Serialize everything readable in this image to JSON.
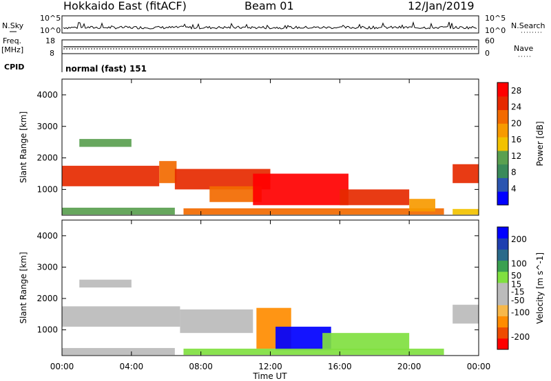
{
  "header": {
    "station": "Hokkaido East (fitACF)",
    "beam": "Beam 01",
    "date": "12/Jan/2019"
  },
  "sidepanel": {
    "nsky_label": "N.Sky",
    "nsky_ticks": [
      "10^5",
      "10^0"
    ],
    "nsearch_label": "N.Search",
    "nsearch_ticks": [
      "10^5",
      "10^0"
    ],
    "freq_label": "Freq.",
    "freq_unit": "[MHz]",
    "freq_ticks": [
      "18",
      "8"
    ],
    "nave_label": "Nave",
    "nave_ticks": [
      "60",
      "0"
    ],
    "cpid_label": "CPID",
    "cpid_value": "normal (fast) 151"
  },
  "colors": {
    "power_scale": [
      "#0000ff",
      "#2b55b0",
      "#3a8a5a",
      "#5aa050",
      "#f2c200",
      "#f79a00",
      "#f26a00",
      "#e62a00",
      "#ff0000"
    ],
    "velocity_scale": [
      "#ff0000",
      "#ee4b00",
      "#ff8c00",
      "#f7b84a",
      "#bbbbbb",
      "#bbbbbb",
      "#80e040",
      "#3aa050",
      "#2a6a8a",
      "#1f3fb0",
      "#0000ff"
    ]
  },
  "chart_data": [
    {
      "type": "heatmap",
      "name": "power",
      "ylabel": "Slant Range [km]",
      "xlabel": "",
      "x_ticks": [
        "00:00",
        "04:00",
        "08:00",
        "12:00",
        "16:00",
        "20:00",
        "00:00"
      ],
      "y_ticks": [
        1000,
        2000,
        3000,
        4000
      ],
      "ylim": [
        180,
        4500
      ],
      "xlim_hours": [
        0,
        24
      ],
      "colorbar": {
        "label": "Power [dB]",
        "ticks": [
          4,
          8,
          12,
          16,
          20,
          24,
          28
        ],
        "range": [
          0,
          30
        ]
      },
      "regions": [
        {
          "t0": 0.0,
          "t1": 5.6,
          "r0": 1100,
          "r1": 1750,
          "level": 26
        },
        {
          "t0": 5.6,
          "t1": 6.6,
          "r0": 1200,
          "r1": 1900,
          "level": 22
        },
        {
          "t0": 0.0,
          "t1": 6.5,
          "r0": 200,
          "r1": 420,
          "level": 10
        },
        {
          "t0": 6.5,
          "t1": 12.0,
          "r0": 1000,
          "r1": 1650,
          "level": 24
        },
        {
          "t0": 8.5,
          "t1": 11.5,
          "r0": 600,
          "r1": 1100,
          "level": 22
        },
        {
          "t0": 11.0,
          "t1": 16.5,
          "r0": 500,
          "r1": 1500,
          "level": 27
        },
        {
          "t0": 16.0,
          "t1": 20.0,
          "r0": 500,
          "r1": 1000,
          "level": 24
        },
        {
          "t0": 7.0,
          "t1": 22.0,
          "r0": 200,
          "r1": 400,
          "level": 22
        },
        {
          "t0": 20.0,
          "t1": 21.5,
          "r0": 300,
          "r1": 700,
          "level": 18
        },
        {
          "t0": 22.5,
          "t1": 24.0,
          "r0": 1200,
          "r1": 1800,
          "level": 25
        },
        {
          "t0": 22.5,
          "t1": 24.0,
          "r0": 200,
          "r1": 380,
          "level": 16
        },
        {
          "t0": 1.0,
          "t1": 4.0,
          "r0": 2350,
          "r1": 2600,
          "level": 12
        }
      ]
    },
    {
      "type": "heatmap",
      "name": "velocity",
      "ylabel": "Slant Range [km]",
      "xlabel": "Time UT",
      "x_ticks": [
        "00:00",
        "04:00",
        "08:00",
        "12:00",
        "16:00",
        "20:00",
        "00:00"
      ],
      "y_ticks": [
        1000,
        2000,
        3000,
        4000
      ],
      "ylim": [
        180,
        4500
      ],
      "xlim_hours": [
        0,
        24
      ],
      "colorbar": {
        "label": "Velocity [m s^-1]",
        "ticks": [
          200,
          100,
          50,
          15,
          -15,
          -50,
          -100,
          -200
        ],
        "range": [
          -250,
          250
        ]
      },
      "regions": [
        {
          "t0": 0.0,
          "t1": 6.8,
          "r0": 1100,
          "r1": 1750,
          "level": 0
        },
        {
          "t0": 6.8,
          "t1": 11.0,
          "r0": 900,
          "r1": 1650,
          "level": 0
        },
        {
          "t0": 0.0,
          "t1": 6.5,
          "r0": 200,
          "r1": 420,
          "level": -40
        },
        {
          "t0": 11.2,
          "t1": 13.2,
          "r0": 400,
          "r1": 1700,
          "level": -150
        },
        {
          "t0": 12.3,
          "t1": 15.5,
          "r0": 350,
          "r1": 1100,
          "level": 230
        },
        {
          "t0": 15.0,
          "t1": 20.0,
          "r0": 350,
          "r1": 900,
          "level": 40
        },
        {
          "t0": 7.0,
          "t1": 22.0,
          "r0": 200,
          "r1": 400,
          "level": 30
        },
        {
          "t0": 22.5,
          "t1": 24.0,
          "r0": 1200,
          "r1": 1800,
          "level": 0
        },
        {
          "t0": 1.0,
          "t1": 4.0,
          "r0": 2350,
          "r1": 2600,
          "level": 0
        }
      ]
    }
  ]
}
